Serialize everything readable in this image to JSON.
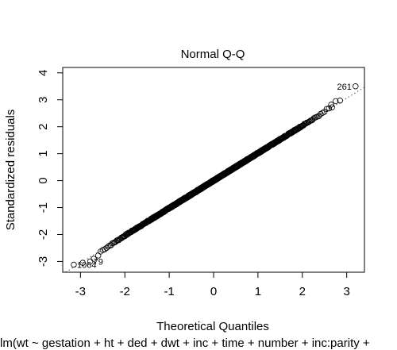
{
  "chart_data": {
    "type": "scatter",
    "title": "Normal Q-Q",
    "xlabel": "Theoretical Quantiles",
    "ylabel": "Standardized residuals",
    "subtitle": "lm(wt ~ gestation + ht + ded + dwt + inc + time + number + inc:parity +",
    "xlim": [
      -3.4,
      3.4
    ],
    "ylim": [
      -3.4,
      4.2
    ],
    "xticks": [
      -3,
      -2,
      -1,
      0,
      1,
      2,
      3
    ],
    "yticks": [
      -3,
      -2,
      -1,
      0,
      1,
      2,
      3,
      4
    ],
    "reference_line": {
      "slope": 1.02,
      "intercept": 0,
      "style": "dotted"
    },
    "points": {
      "n": 1200,
      "slope": 1.02,
      "noise_sd": 0.025,
      "tails": [
        {
          "x": -3.15,
          "y": -3.12
        },
        {
          "x": -2.95,
          "y": -3.05
        },
        {
          "x": -2.78,
          "y": -3.0
        },
        {
          "x": -2.7,
          "y": -2.9
        },
        {
          "x": -2.6,
          "y": -2.78
        },
        {
          "x": 2.55,
          "y": 2.66
        },
        {
          "x": 2.6,
          "y": 2.68
        },
        {
          "x": 2.67,
          "y": 2.72
        },
        {
          "x": 2.65,
          "y": 2.82
        },
        {
          "x": 2.75,
          "y": 2.95
        },
        {
          "x": 2.85,
          "y": 2.97
        },
        {
          "x": 3.2,
          "y": 3.5
        }
      ]
    },
    "labelled_points": [
      {
        "label": "261",
        "x": 3.2,
        "y": 3.5,
        "side": "left"
      },
      {
        "label": "1064",
        "x": -3.15,
        "y": -3.12,
        "side": "right"
      },
      {
        "label": "79",
        "x": -2.78,
        "y": -3.0,
        "side": "right"
      }
    ]
  }
}
